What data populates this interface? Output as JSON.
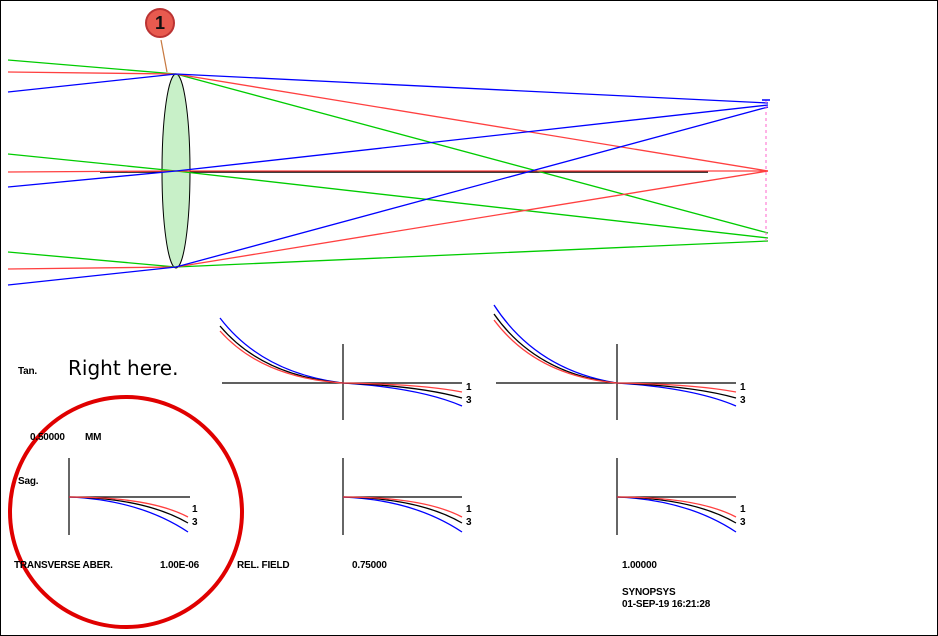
{
  "surface_marker": "1",
  "annotation_text": "Right here.",
  "labels": {
    "tan": "Tan.",
    "sag": "Sag.",
    "scale_value": "0.50000",
    "scale_unit": "MM",
    "transverse": "TRANSVERSE ABER.",
    "wavelength": "1.00E-06",
    "rel_field": "REL. FIELD",
    "field_0": "0.75000",
    "field_1": "1.00000",
    "program": "SYNOPSYS",
    "timestamp": "01-SEP-19 16:21:28",
    "curve_1": "1",
    "curve_3": "3"
  },
  "colors": {
    "ray_red": "#ff4040",
    "ray_green": "#00cc00",
    "ray_blue": "#0000ff",
    "lens_fill": "#c8f0c8",
    "circle": "#e00000"
  }
}
